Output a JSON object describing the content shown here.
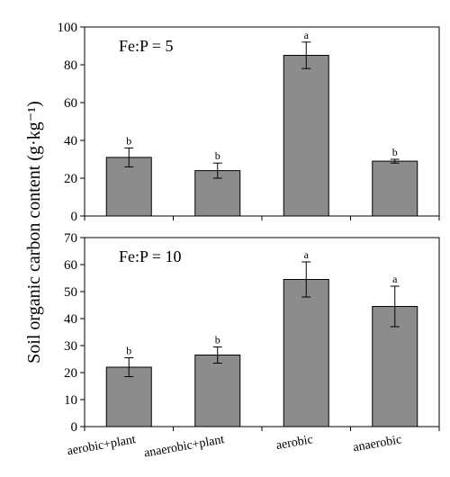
{
  "ylabel": "Soil organic carbon content (g·kg⁻¹)",
  "categories": [
    "aerobic+plant",
    "anaerobic+plant",
    "aerobic",
    "anaerobic"
  ],
  "chart_data": [
    {
      "type": "bar",
      "panel_label": "Fe:P = 5",
      "categories": [
        "aerobic+plant",
        "anaerobic+plant",
        "aerobic",
        "anaerobic"
      ],
      "values": [
        31,
        24,
        85,
        29
      ],
      "error": [
        5,
        4,
        7,
        1
      ],
      "significance": [
        "b",
        "b",
        "a",
        "b"
      ],
      "ylim": [
        0,
        100
      ],
      "yticks": [
        0,
        20,
        40,
        60,
        80,
        100
      ],
      "bar_color": "#8c8c8c",
      "grid": false
    },
    {
      "type": "bar",
      "panel_label": "Fe:P = 10",
      "categories": [
        "aerobic+plant",
        "anaerobic+plant",
        "aerobic",
        "anaerobic"
      ],
      "values": [
        22,
        26.5,
        54.5,
        44.5
      ],
      "error": [
        3.5,
        3,
        6.5,
        7.5
      ],
      "significance": [
        "b",
        "b",
        "a",
        "a"
      ],
      "ylim": [
        0,
        70
      ],
      "yticks": [
        0,
        10,
        20,
        30,
        40,
        50,
        60,
        70
      ],
      "bar_color": "#8c8c8c",
      "grid": false
    }
  ]
}
